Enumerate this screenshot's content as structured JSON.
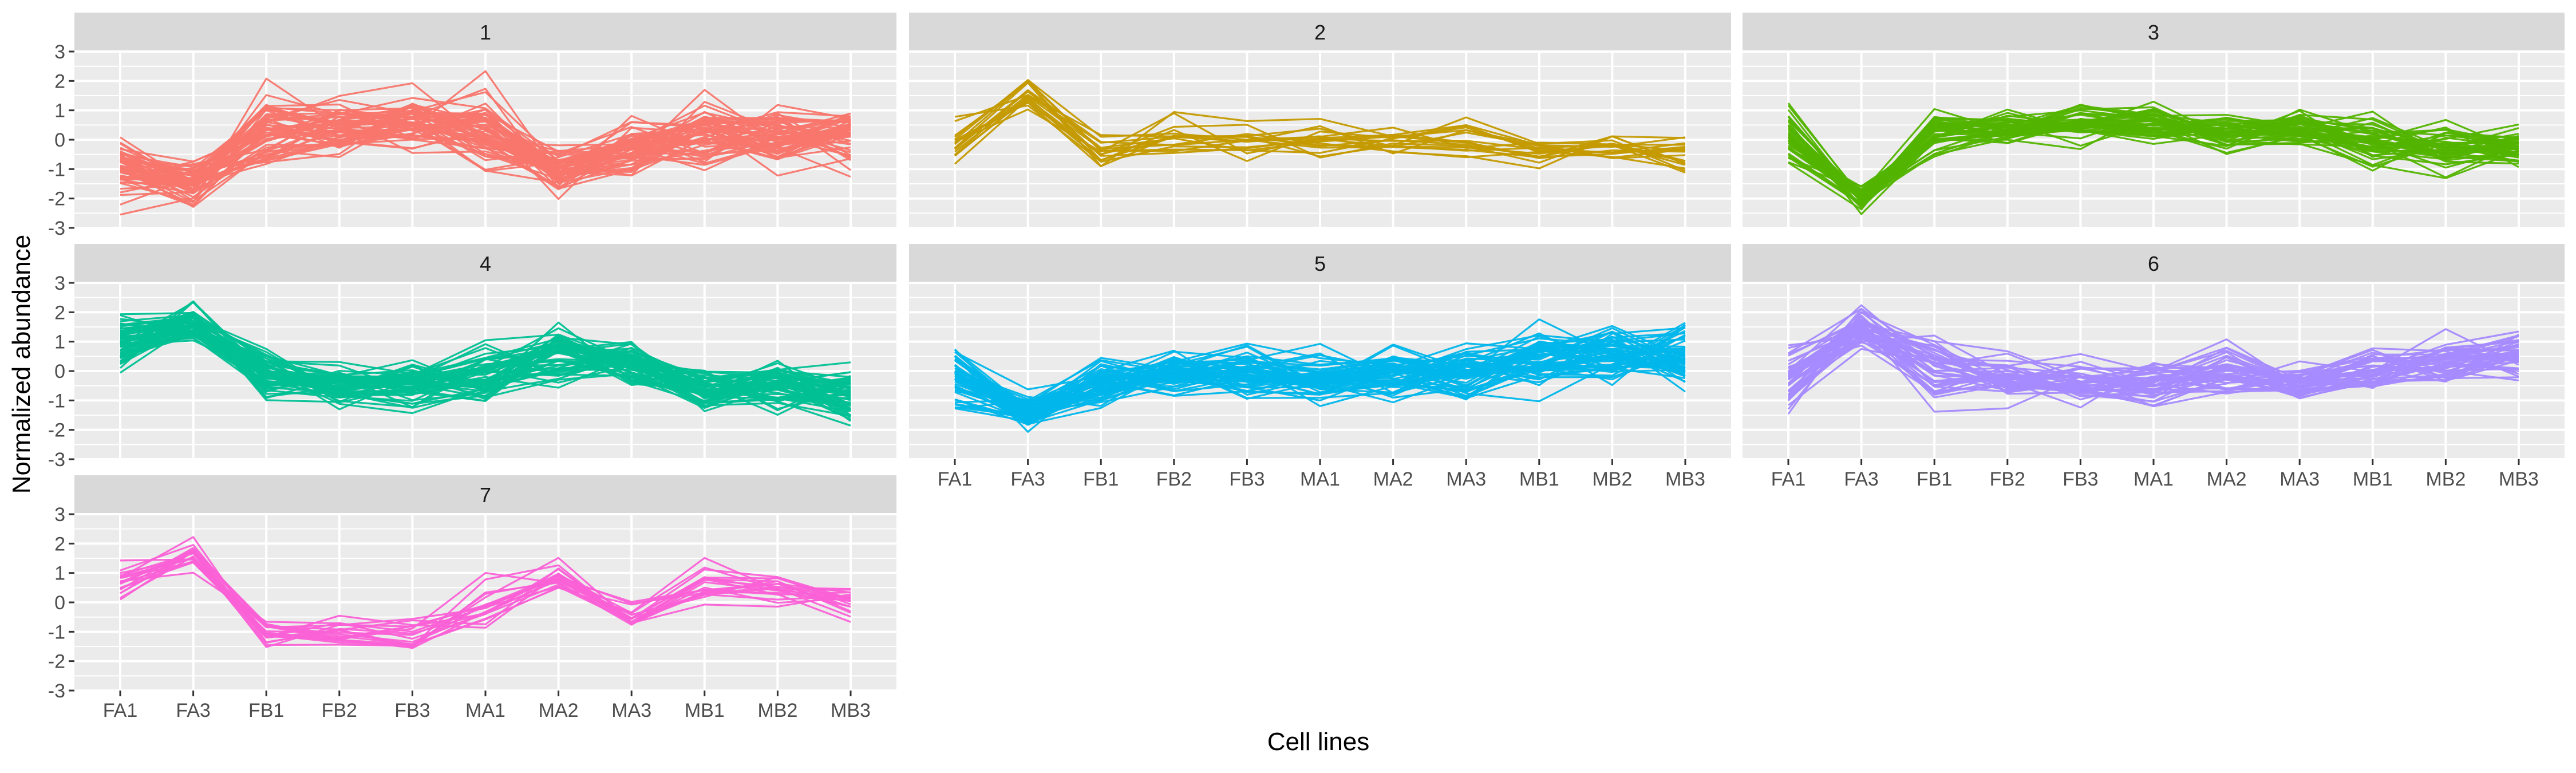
{
  "chart_data": {
    "type": "line",
    "xlabel": "Cell lines",
    "ylabel": "Normalized abundance",
    "categories": [
      "FA1",
      "FA3",
      "FB1",
      "FB2",
      "FB3",
      "MA1",
      "MA2",
      "MA3",
      "MB1",
      "MB2",
      "MB3"
    ],
    "ylim": [
      -3,
      3
    ],
    "yticks": [
      -3,
      -2,
      -1,
      0,
      1,
      2,
      3
    ],
    "grid": true,
    "facets": [
      {
        "label": "1",
        "color": "#F8766D",
        "series_stats": {
          "center": [
            -1.0,
            -1.5,
            0.4,
            0.5,
            0.6,
            0.4,
            -1.0,
            -0.4,
            0.3,
            0.2,
            0.0
          ],
          "spread": [
            0.9,
            0.6,
            1.2,
            1.0,
            0.9,
            1.2,
            0.7,
            0.9,
            1.0,
            1.0,
            1.0
          ],
          "count": 60
        }
      },
      {
        "label": "2",
        "color": "#C49A00",
        "series_stats": {
          "center": [
            -0.1,
            1.6,
            -0.3,
            0.0,
            0.1,
            0.0,
            -0.1,
            0.0,
            -0.4,
            -0.3,
            -0.5
          ],
          "spread": [
            0.7,
            0.8,
            0.6,
            0.7,
            0.6,
            0.8,
            0.6,
            0.7,
            0.6,
            0.6,
            0.6
          ],
          "count": 18
        }
      },
      {
        "label": "3",
        "color": "#53B400",
        "series_stats": {
          "center": [
            0.1,
            -2.0,
            0.3,
            0.4,
            0.5,
            0.7,
            0.2,
            0.3,
            -0.2,
            -0.3,
            -0.3
          ],
          "spread": [
            0.9,
            0.4,
            0.7,
            0.6,
            0.6,
            0.7,
            0.6,
            0.6,
            0.8,
            0.8,
            0.7
          ],
          "count": 45
        }
      },
      {
        "label": "4",
        "color": "#00C094",
        "series_stats": {
          "center": [
            1.0,
            1.6,
            -0.1,
            -0.5,
            -0.4,
            -0.1,
            0.5,
            0.2,
            -0.7,
            -0.5,
            -0.8
          ],
          "spread": [
            0.9,
            0.6,
            0.7,
            0.6,
            0.7,
            1.0,
            0.9,
            0.8,
            0.7,
            0.7,
            0.8
          ],
          "count": 60
        }
      },
      {
        "label": "5",
        "color": "#00B6EB",
        "series_stats": {
          "center": [
            -0.2,
            -1.5,
            -0.4,
            0.0,
            -0.1,
            -0.2,
            -0.1,
            -0.1,
            0.4,
            0.6,
            0.6
          ],
          "spread": [
            0.9,
            0.6,
            0.7,
            0.7,
            0.8,
            0.8,
            0.8,
            0.8,
            1.0,
            0.9,
            1.0
          ],
          "count": 60
        }
      },
      {
        "label": "6",
        "color": "#A58AFF",
        "series_stats": {
          "center": [
            -0.1,
            1.4,
            0.1,
            -0.3,
            -0.5,
            -0.4,
            -0.1,
            -0.4,
            0.1,
            0.4,
            0.6
          ],
          "spread": [
            0.9,
            0.7,
            1.1,
            0.7,
            0.7,
            0.8,
            0.7,
            0.6,
            0.8,
            0.8,
            0.8
          ],
          "count": 45
        }
      },
      {
        "label": "7",
        "color": "#FB61D7",
        "series_stats": {
          "center": [
            0.7,
            1.6,
            -1.0,
            -1.0,
            -1.2,
            -0.2,
            0.9,
            -0.5,
            0.6,
            0.5,
            0.1
          ],
          "spread": [
            0.6,
            0.5,
            0.5,
            0.6,
            0.6,
            0.8,
            0.6,
            0.6,
            0.6,
            0.5,
            0.6
          ],
          "count": 20
        }
      }
    ]
  },
  "colors": {
    "panel_background": "#EBEBEB",
    "strip_background": "#D9D9D9",
    "gridline": "#FFFFFF",
    "tick_text": "#4D4D4D",
    "axis_text": "#000000"
  }
}
